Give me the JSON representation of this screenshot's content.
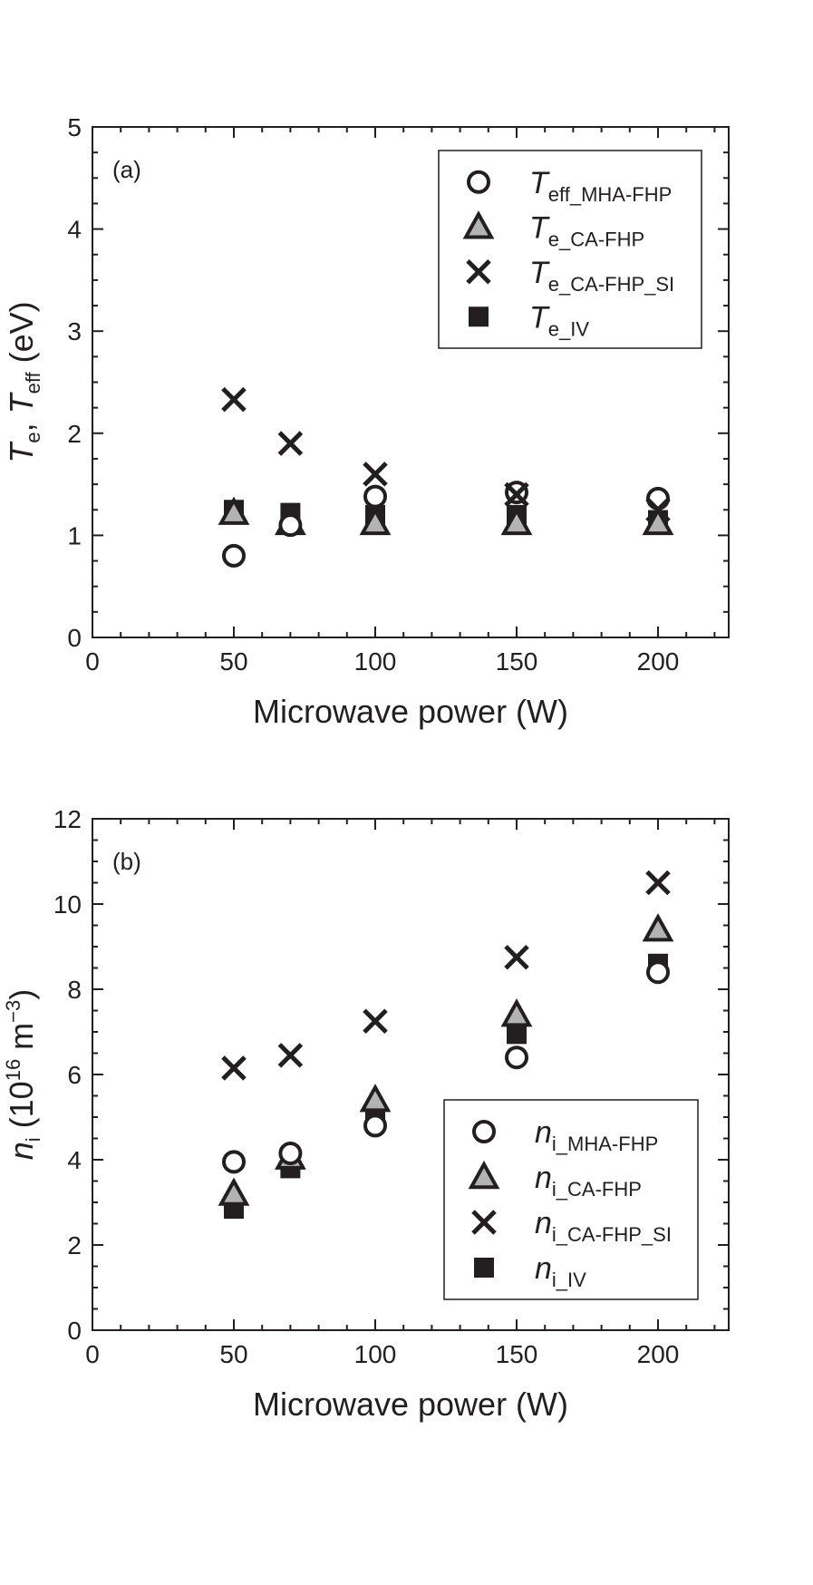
{
  "chart_data": [
    {
      "panel_label": "(a)",
      "type": "scatter",
      "xlabel": "Microwave power (W)",
      "ylabel": {
        "parts": [
          {
            "text": "T",
            "italic": true
          },
          {
            "text": "e",
            "sub": true
          },
          {
            "text": ",  "
          },
          {
            "text": "T",
            "italic": true
          },
          {
            "text": "eff",
            "sub": true
          },
          {
            "text": "  (eV)"
          }
        ]
      },
      "xlim": [
        0,
        225
      ],
      "ylim": [
        0,
        5
      ],
      "xticks": [
        0,
        50,
        100,
        150,
        200
      ],
      "yticks": [
        0,
        1,
        2,
        3,
        4,
        5
      ],
      "grid": false,
      "legend_position": "top-right",
      "series": [
        {
          "symbol": "T",
          "subscript": "eff_MHA-FHP",
          "marker": "circle",
          "x": [
            50,
            70,
            100,
            150,
            200
          ],
          "y": [
            0.8,
            1.1,
            1.38,
            1.42,
            1.36
          ]
        },
        {
          "symbol": "T",
          "subscript": "e_CA-FHP",
          "marker": "triangle",
          "x": [
            50,
            70,
            100,
            150,
            200
          ],
          "y": [
            1.22,
            1.12,
            1.12,
            1.12,
            1.12
          ]
        },
        {
          "symbol": "T",
          "subscript": "e_CA-FHP_SI",
          "marker": "cross",
          "x": [
            50,
            70,
            100,
            150,
            200
          ],
          "y": [
            2.33,
            1.9,
            1.6,
            1.4,
            1.25
          ]
        },
        {
          "symbol": "T",
          "subscript": "e_IV",
          "marker": "square",
          "x": [
            50,
            70,
            100,
            150,
            200
          ],
          "y": [
            1.25,
            1.22,
            1.2,
            1.2,
            1.15
          ]
        }
      ]
    },
    {
      "panel_label": "(b)",
      "type": "scatter",
      "xlabel": "Microwave power (W)",
      "ylabel": {
        "parts": [
          {
            "text": "n",
            "italic": true
          },
          {
            "text": "i",
            "sub": true
          },
          {
            "text": "  (10"
          },
          {
            "text": "16",
            "sup": true
          },
          {
            "text": " m"
          },
          {
            "text": "−3",
            "sup": true
          },
          {
            "text": ")"
          }
        ]
      },
      "xlim": [
        0,
        225
      ],
      "ylim": [
        0,
        12
      ],
      "xticks": [
        0,
        50,
        100,
        150,
        200
      ],
      "yticks": [
        0,
        2,
        4,
        6,
        8,
        10,
        12
      ],
      "grid": false,
      "legend_position": "bottom-right",
      "series": [
        {
          "symbol": "n",
          "subscript": "i_MHA-FHP",
          "marker": "circle",
          "x": [
            50,
            70,
            100,
            150,
            200
          ],
          "y": [
            3.95,
            4.15,
            4.8,
            6.4,
            8.4
          ]
        },
        {
          "symbol": "n",
          "subscript": "i_CA-FHP",
          "marker": "triangle",
          "x": [
            50,
            70,
            100,
            150,
            200
          ],
          "y": [
            3.2,
            4.05,
            5.4,
            7.4,
            9.4
          ]
        },
        {
          "symbol": "n",
          "subscript": "i_CA-FHP_SI",
          "marker": "cross",
          "x": [
            50,
            70,
            100,
            150,
            200
          ],
          "y": [
            6.15,
            6.45,
            7.25,
            8.75,
            10.5
          ]
        },
        {
          "symbol": "n",
          "subscript": "i_IV",
          "marker": "square",
          "x": [
            50,
            70,
            100,
            150,
            200
          ],
          "y": [
            2.85,
            3.8,
            4.9,
            6.95,
            8.6
          ]
        }
      ]
    }
  ],
  "colors": {
    "ink": "#231f20",
    "marker_fill_gray": "#b3b3b3",
    "background": "#ffffff"
  }
}
